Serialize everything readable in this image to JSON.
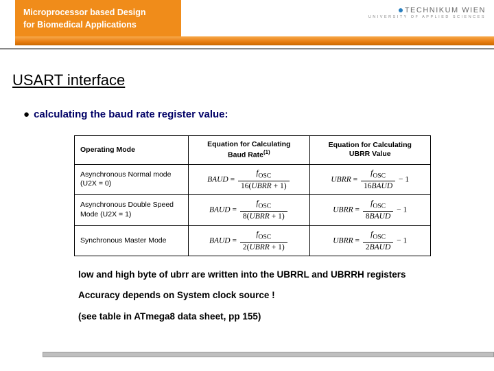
{
  "header": {
    "tab_line1": "Microprocessor based Design",
    "tab_line2": "for Biomedical Applications",
    "logo_main": "TECHNIKUM WIEN",
    "logo_sub": "UNIVERSITY OF APPLIED SCIENCES"
  },
  "title": "USART interface",
  "bullet": "calculating the baud rate register value:",
  "table": {
    "headers": {
      "col1": "Operating Mode",
      "col2_l1": "Equation for Calculating",
      "col2_l2": "Baud Rate",
      "col3_l1": "Equation for Calculating",
      "col3_l2": "UBRR Value"
    },
    "rows": [
      {
        "mode_l1": "Asynchronous Normal mode",
        "mode_l2": "(U2X = 0)",
        "lhs": "BAUD",
        "num": "f",
        "num_sub": "OSC",
        "den_pre": "16(",
        "den_var": "UBRR",
        "den_post": " + 1)",
        "r_lhs": "UBRR",
        "r_num": "f",
        "r_num_sub": "OSC",
        "r_den_pre": "16",
        "r_den_var": "BAUD",
        "r_tail": " − 1"
      },
      {
        "mode_l1": "Asynchronous Double Speed",
        "mode_l2": "Mode (U2X = 1)",
        "lhs": "BAUD",
        "num": "f",
        "num_sub": "OSC",
        "den_pre": "8(",
        "den_var": "UBRR",
        "den_post": " + 1)",
        "r_lhs": "UBRR",
        "r_num": "f",
        "r_num_sub": "OSC",
        "r_den_pre": "8",
        "r_den_var": "BAUD",
        "r_tail": " − 1"
      },
      {
        "mode_l1": "Synchronous Master Mode",
        "mode_l2": "",
        "lhs": "BAUD",
        "num": "f",
        "num_sub": "OSC",
        "den_pre": "2(",
        "den_var": "UBRR",
        "den_post": " + 1)",
        "r_lhs": "UBRR",
        "r_num": "f",
        "r_num_sub": "OSC",
        "r_den_pre": "2",
        "r_den_var": "BAUD",
        "r_tail": " − 1"
      }
    ],
    "footnote_mark": "(1)"
  },
  "notes": {
    "n1": "low and high byte of ubrr are written into the UBRRL and UBRRH registers",
    "n2": "Accuracy depends on System clock source !",
    "n3": "(see table in ATmega8 data sheet, pp 155)"
  },
  "colors": {
    "orange": "#f08c1a",
    "title_blue": "#000066",
    "logo_dot": "#2a7fbf",
    "footer_gray": "#bfbfbf"
  }
}
